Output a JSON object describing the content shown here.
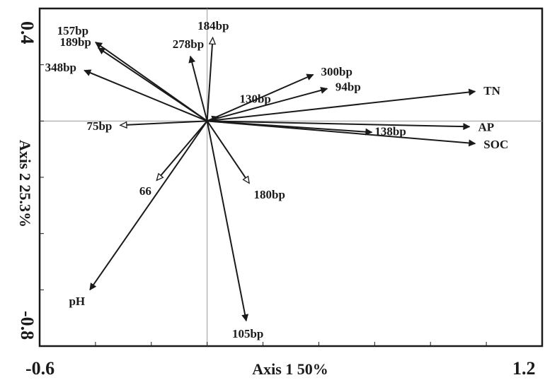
{
  "chart_data": {
    "type": "biplot",
    "xlabel": "Axis 1 50%",
    "ylabel": "Axis 2 25.3%",
    "xlim": [
      -0.6,
      1.2
    ],
    "ylim": [
      -0.8,
      0.4
    ],
    "x_tick_labels": [
      "-0.6",
      "1.2"
    ],
    "y_tick_labels": [
      "0.4",
      "-0.8"
    ],
    "reference_lines": {
      "x": 0,
      "y": 0
    },
    "grid": false,
    "legend": "none",
    "colors": {
      "filled_arrow": "#1a1a1a",
      "open_arrow": "#ffffff",
      "axis": "#1a1a1a",
      "reference_line": "#999999"
    },
    "vectors": [
      {
        "label": "157bp",
        "x": -0.4,
        "y": 0.28,
        "head": "filled"
      },
      {
        "label": "189bp",
        "x": -0.39,
        "y": 0.26,
        "head": "filled"
      },
      {
        "label": "348bp",
        "x": -0.44,
        "y": 0.18,
        "head": "filled"
      },
      {
        "label": "278bp",
        "x": -0.06,
        "y": 0.23,
        "head": "filled"
      },
      {
        "label": "184bp",
        "x": 0.02,
        "y": 0.295,
        "head": "open"
      },
      {
        "label": "300bp",
        "x": 0.38,
        "y": 0.165,
        "head": "filled"
      },
      {
        "label": "94bp",
        "x": 0.43,
        "y": 0.115,
        "head": "filled"
      },
      {
        "label": "130bp",
        "x": 0.04,
        "y": 0.015,
        "head": "filled"
      },
      {
        "label": "TN",
        "x": 0.96,
        "y": 0.105,
        "head": "filled"
      },
      {
        "label": "138bp",
        "x": 0.59,
        "y": -0.04,
        "head": "filled"
      },
      {
        "label": "AP",
        "x": 0.94,
        "y": -0.02,
        "head": "filled"
      },
      {
        "label": "SOC",
        "x": 0.96,
        "y": -0.08,
        "head": "filled"
      },
      {
        "label": "75bp",
        "x": -0.31,
        "y": -0.015,
        "head": "open"
      },
      {
        "label": "66",
        "x": -0.18,
        "y": -0.21,
        "head": "open"
      },
      {
        "label": "180bp",
        "x": 0.15,
        "y": -0.22,
        "head": "open"
      },
      {
        "label": "pH",
        "x": -0.42,
        "y": -0.6,
        "head": "filled"
      },
      {
        "label": "105bp",
        "x": 0.14,
        "y": -0.71,
        "head": "filled"
      }
    ]
  }
}
